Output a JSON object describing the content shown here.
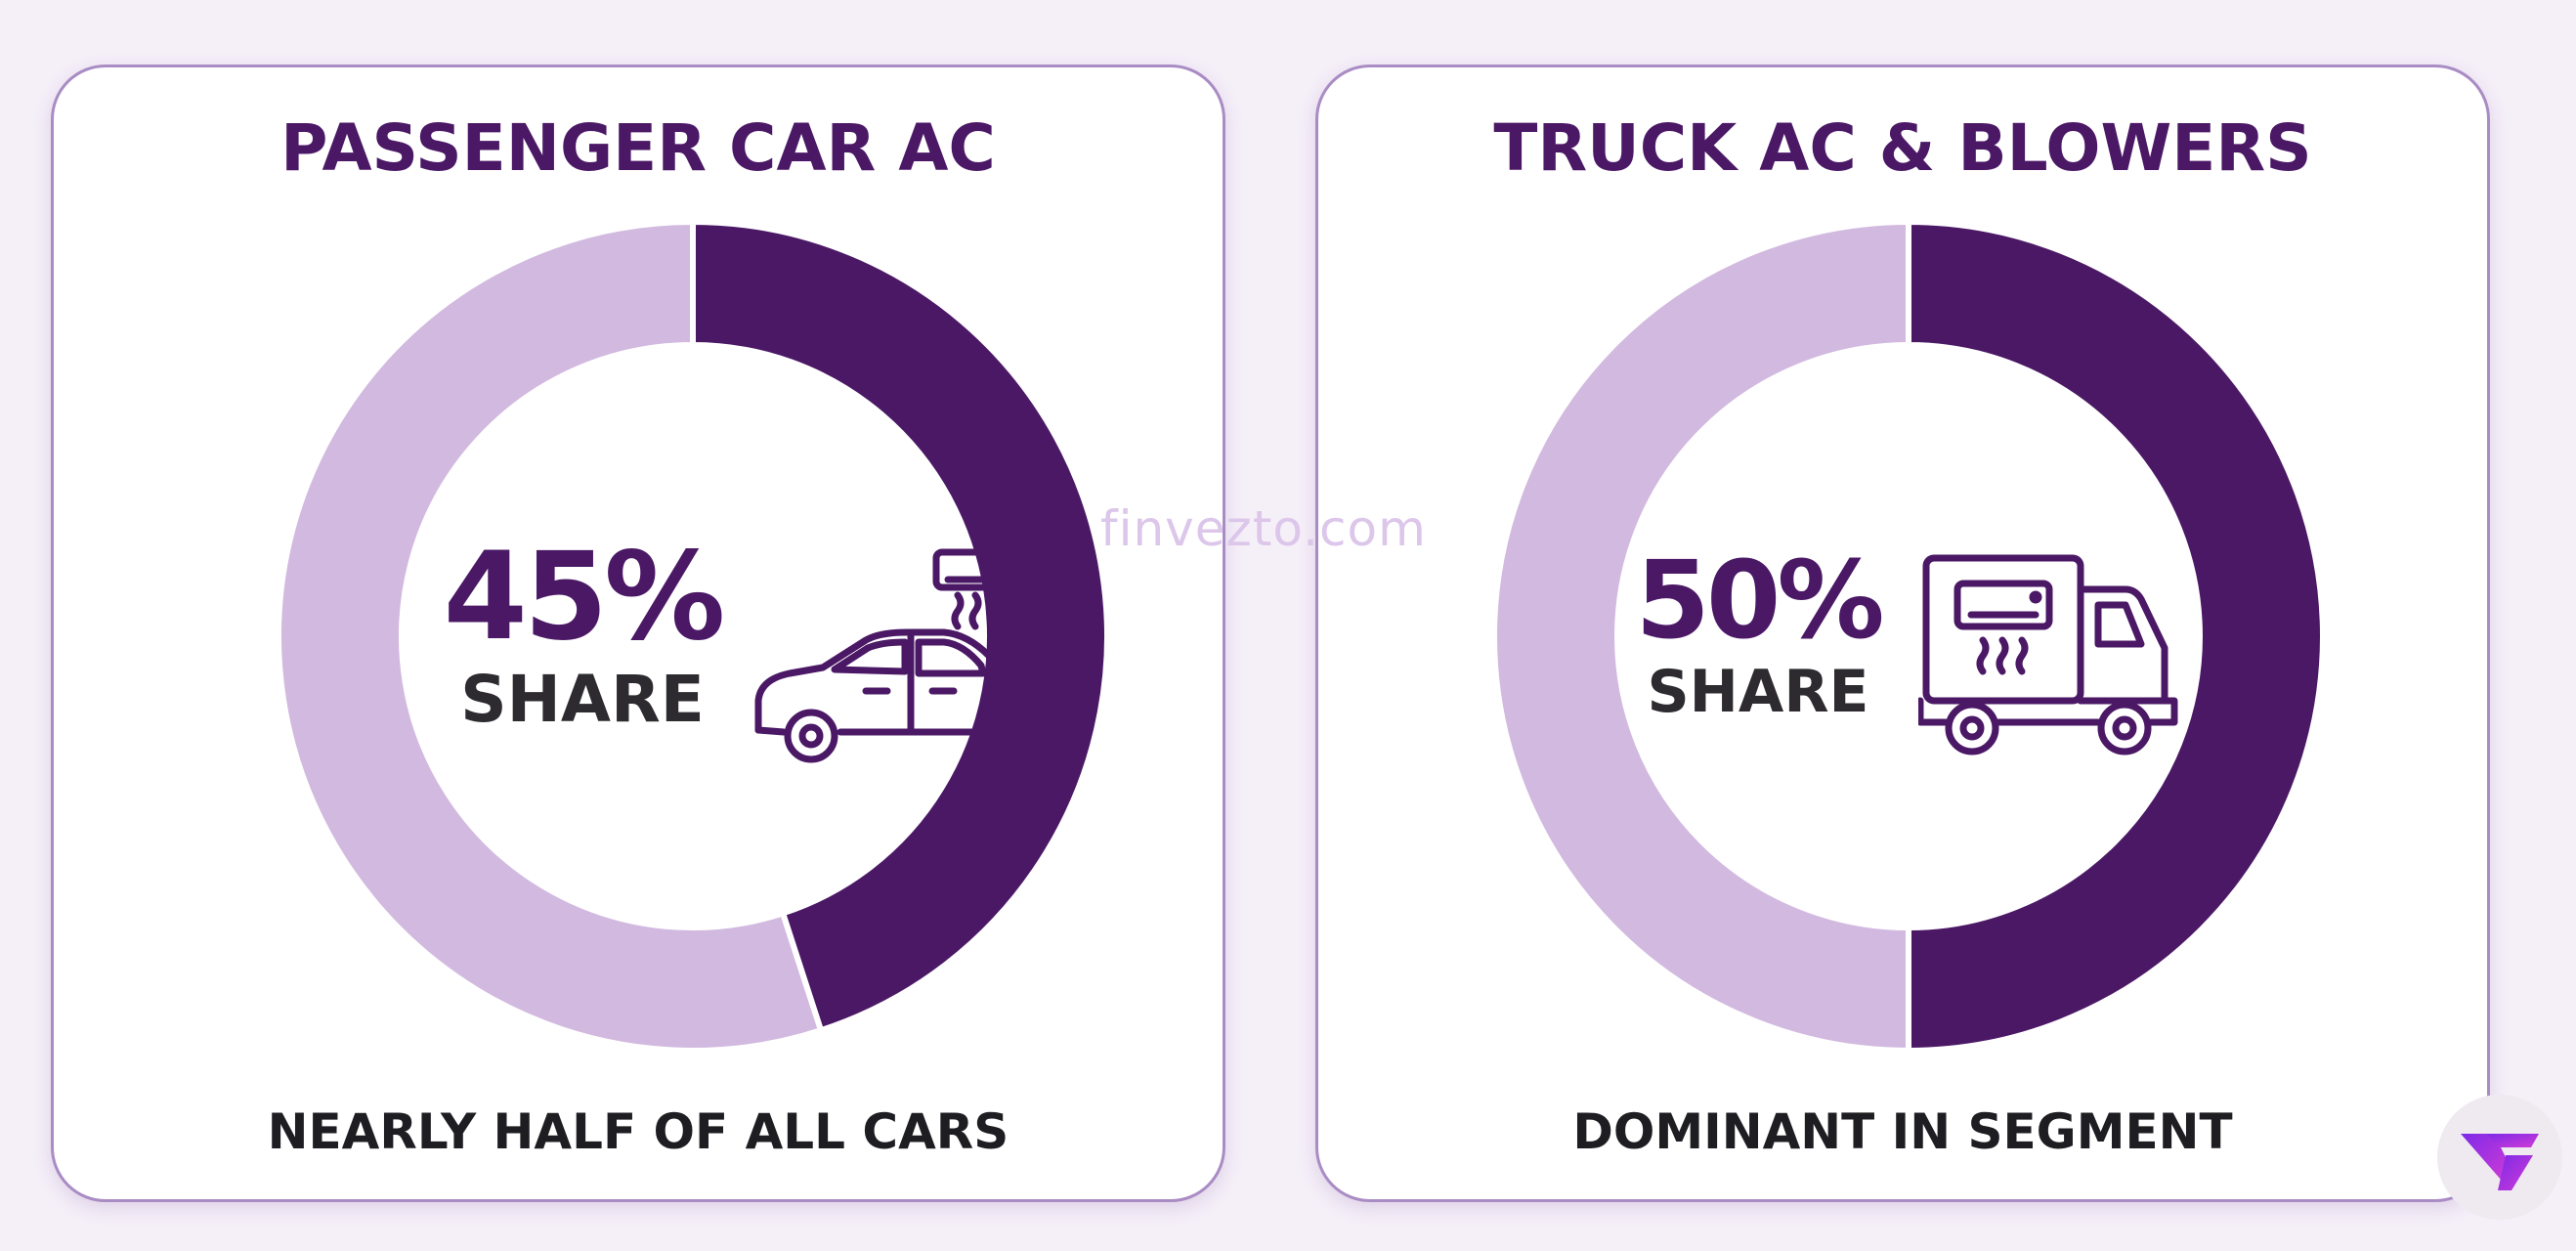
{
  "chart_data": [
    {
      "type": "pie",
      "title": "PASSENGER CAR AC",
      "values": [
        45,
        55
      ],
      "center_value": "45%",
      "center_label": "SHARE",
      "caption": "NEARLY HALF OF ALL CARS",
      "icon": "car-ac-icon"
    },
    {
      "type": "pie",
      "title": "TRUCK AC & BLOWERS",
      "values": [
        50,
        50
      ],
      "center_value": "50%",
      "center_label": "SHARE",
      "caption": "DOMINANT IN SEGMENT",
      "icon": "truck-ac-icon"
    }
  ],
  "colors": {
    "share": "#4b1866",
    "remainder": "#d2b9e0",
    "title": "#4b1866",
    "card_border": "#a98cc4"
  },
  "watermark": "finvezto.com"
}
